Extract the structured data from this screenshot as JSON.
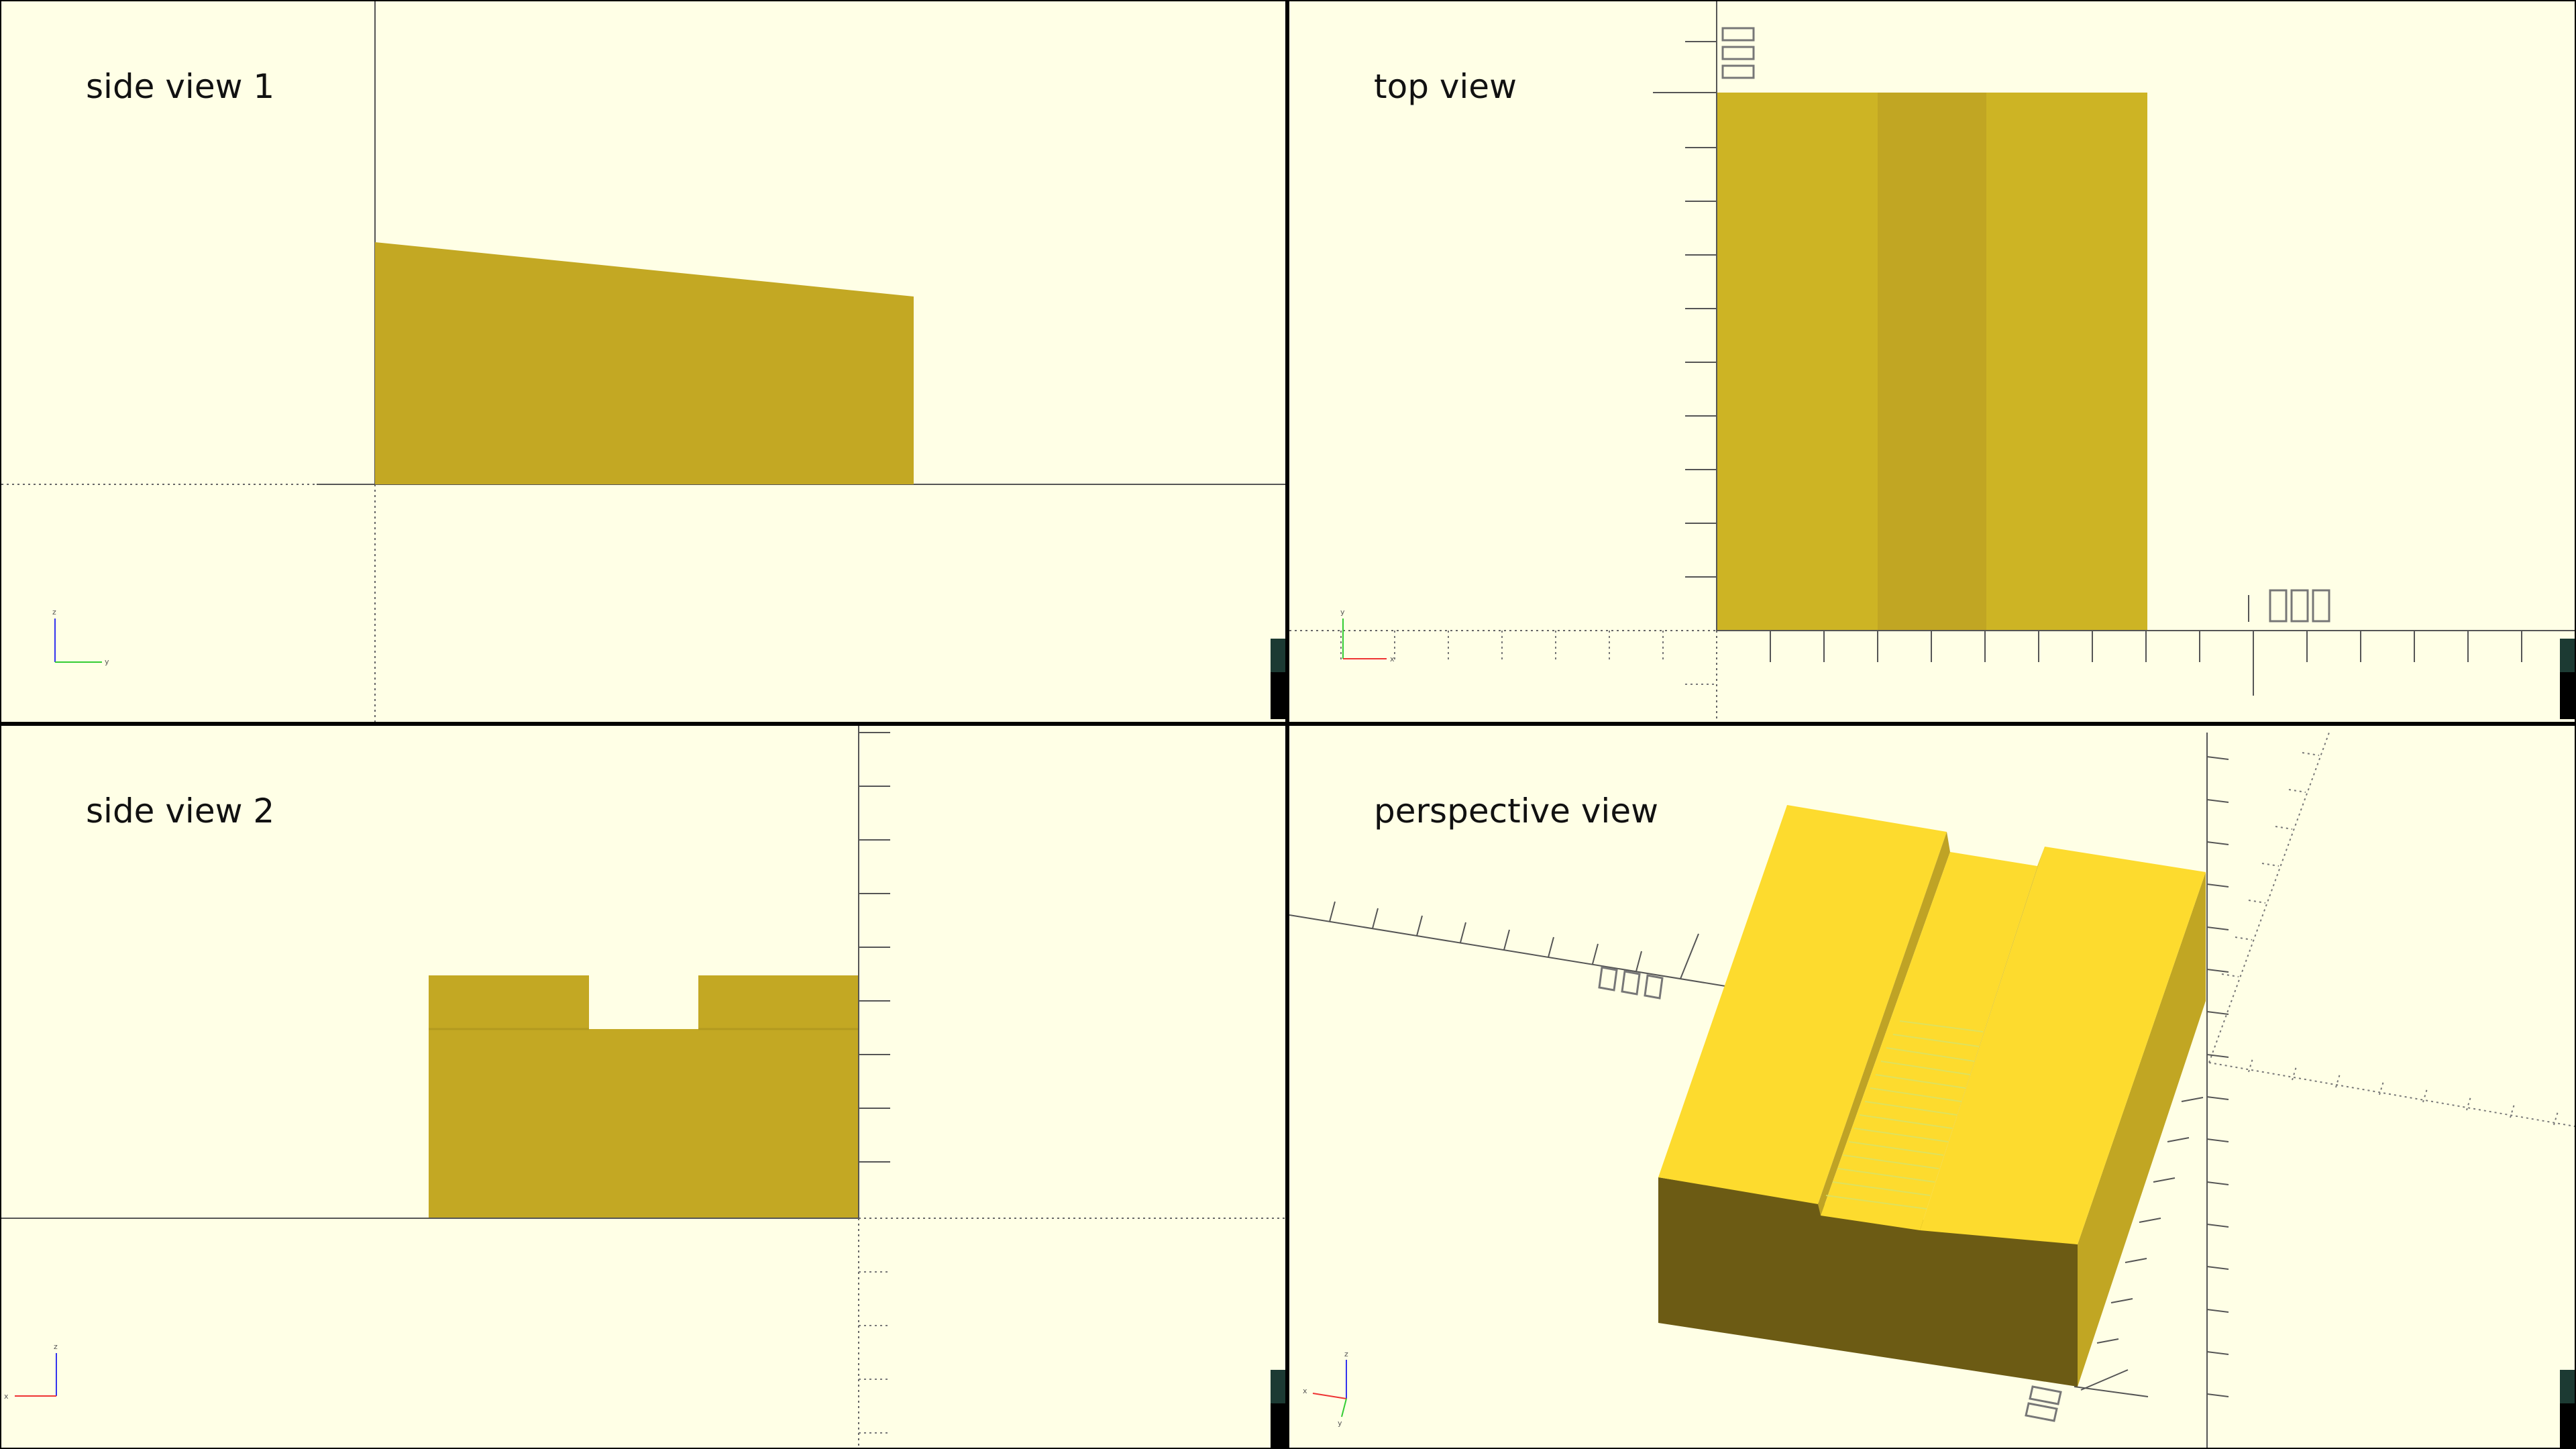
{
  "views": {
    "side1": {
      "title": "side view 1"
    },
    "top": {
      "title": "top view"
    },
    "side2": {
      "title": "side view 2"
    },
    "perspective": {
      "title": "perspective view"
    }
  },
  "axis_letters": {
    "x": "x",
    "y": "y",
    "z": "z"
  },
  "colors": {
    "background": "#ffffe6",
    "model_side": "#c3a823",
    "model_top": "#cdb424",
    "model_top_groove": "#c1a623",
    "model_persp_top": "#fddb2e",
    "model_persp_front": "#6c5b14",
    "model_persp_side": "#c1a623",
    "axis_x": "#e33",
    "axis_y": "#3c3",
    "axis_z": "#33e"
  }
}
